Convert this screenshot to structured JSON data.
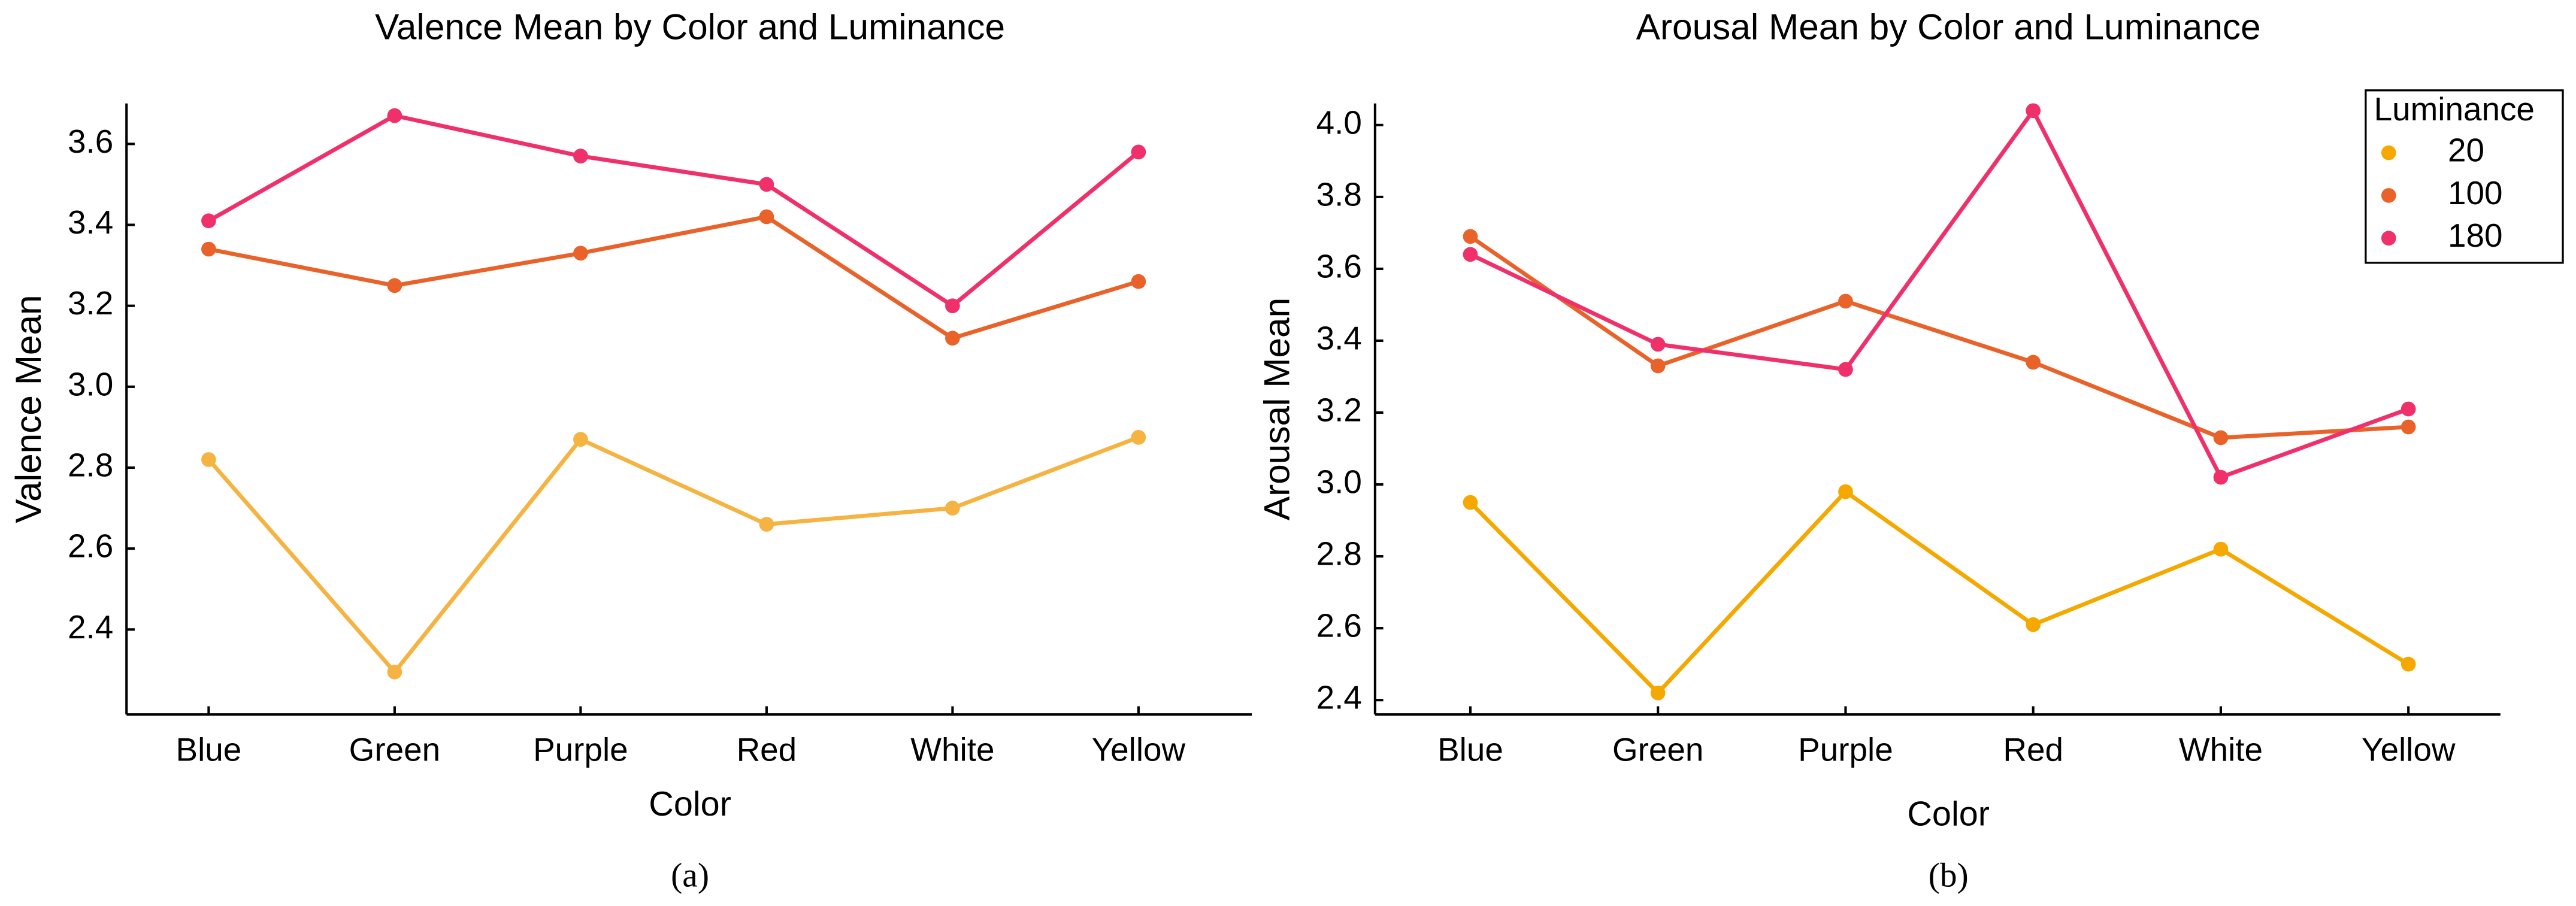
{
  "chart_data": [
    {
      "type": "line",
      "title": "Valence Mean by Color and Luminance",
      "x_label": "Color",
      "y_label": "Valence Mean",
      "caption": "(a)",
      "categories": [
        "Blue",
        "Green",
        "Purple",
        "Red",
        "White",
        "Yellow"
      ],
      "series": [
        {
          "name": "20",
          "color": "#f5b342",
          "values": [
            2.82,
            2.295,
            2.87,
            2.66,
            2.7,
            2.875
          ]
        },
        {
          "name": "100",
          "color": "#e8622a",
          "values": [
            3.34,
            3.25,
            3.33,
            3.42,
            3.12,
            3.26
          ]
        },
        {
          "name": "180",
          "color": "#f0306a",
          "values": [
            3.41,
            3.67,
            3.57,
            3.5,
            3.2,
            3.58
          ]
        }
      ],
      "ylim": [
        2.19,
        3.7
      ],
      "yticks": [
        {
          "value": 2.4,
          "label": "2.4"
        },
        {
          "value": 2.6,
          "label": "2.6"
        },
        {
          "value": 2.8,
          "label": "2.8"
        },
        {
          "value": 3.0,
          "label": "3.0"
        },
        {
          "value": 3.2,
          "label": "3.2"
        },
        {
          "value": 3.4,
          "label": "3.4"
        },
        {
          "value": 3.6,
          "label": "3.6"
        }
      ]
    },
    {
      "type": "line",
      "title": "Arousal Mean by Color and Luminance",
      "x_label": "Color",
      "y_label": "Arousal Mean",
      "caption": "(b)",
      "categories": [
        "Blue",
        "Green",
        "Purple",
        "Red",
        "White",
        "Yellow"
      ],
      "legend_title": "Luminance",
      "legend": "top-right",
      "series": [
        {
          "name": "20",
          "color": "#f5a800",
          "values": [
            2.95,
            2.42,
            2.98,
            2.61,
            2.82,
            2.5
          ]
        },
        {
          "name": "100",
          "color": "#e8622a",
          "values": [
            3.69,
            3.33,
            3.51,
            3.34,
            3.13,
            3.16
          ]
        },
        {
          "name": "180",
          "color": "#f0306a",
          "values": [
            3.64,
            3.39,
            3.32,
            4.04,
            3.02,
            3.21
          ]
        }
      ],
      "ylim": [
        2.36,
        4.06
      ],
      "yticks": [
        {
          "value": 2.4,
          "label": "2.4"
        },
        {
          "value": 2.6,
          "label": "2.6"
        },
        {
          "value": 2.8,
          "label": "2.8"
        },
        {
          "value": 3.0,
          "label": "3.0"
        },
        {
          "value": 3.2,
          "label": "3.2"
        },
        {
          "value": 3.4,
          "label": "3.4"
        },
        {
          "value": 3.6,
          "label": "3.6"
        },
        {
          "value": 3.8,
          "label": "3.8"
        },
        {
          "value": 4.0,
          "label": "4.0"
        }
      ]
    }
  ]
}
